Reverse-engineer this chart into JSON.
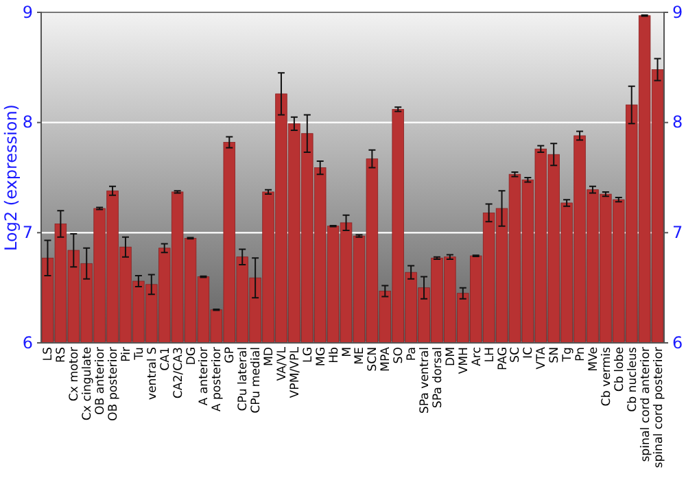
{
  "chart_data": {
    "type": "bar",
    "ylabel": "Log2 (expression)",
    "categories": [
      "LS",
      "RS",
      "Cx motor",
      "Cx cingulate",
      "OB anterior",
      "OB posterior",
      "Pir",
      "Tu",
      "ventral S",
      "CA1",
      "CA2/CA3",
      "DG",
      "A anterior",
      "A posterior",
      "GP",
      "CPu lateral",
      "CPu medial",
      "MD",
      "VA/VL",
      "VPM/VPL",
      "LG",
      "MG",
      "Hb",
      "M",
      "ME",
      "SCN",
      "MPA",
      "SO",
      "Pa",
      "SPa ventral",
      "SPa dorsal",
      "DM",
      "VMH",
      "Arc",
      "LH",
      "PAG",
      "SC",
      "IC",
      "VTA",
      "SN",
      "Tg",
      "Pn",
      "MVe",
      "Cb vermis",
      "Cb lobe",
      "Cb nucleus",
      "spinal cord anterior",
      "spinal cord posterior"
    ],
    "values": [
      6.77,
      7.08,
      6.84,
      6.72,
      7.22,
      7.38,
      6.87,
      6.56,
      6.53,
      6.86,
      7.37,
      6.95,
      6.6,
      6.3,
      7.82,
      6.78,
      6.59,
      7.37,
      8.26,
      7.99,
      7.9,
      7.59,
      7.06,
      7.09,
      6.97,
      7.67,
      6.47,
      8.12,
      6.64,
      6.5,
      6.77,
      6.78,
      6.45,
      6.79,
      7.18,
      7.22,
      7.53,
      7.48,
      7.76,
      7.71,
      7.27,
      7.88,
      7.39,
      7.35,
      7.3,
      8.16,
      8.97,
      8.48
    ],
    "errors": [
      0.16,
      0.12,
      0.15,
      0.14,
      0.01,
      0.04,
      0.09,
      0.05,
      0.09,
      0.04,
      0.01,
      0.005,
      0.005,
      0.005,
      0.05,
      0.07,
      0.18,
      0.02,
      0.19,
      0.06,
      0.17,
      0.06,
      0.005,
      0.07,
      0.01,
      0.08,
      0.05,
      0.02,
      0.06,
      0.1,
      0.01,
      0.02,
      0.05,
      0.005,
      0.08,
      0.16,
      0.02,
      0.02,
      0.03,
      0.1,
      0.03,
      0.04,
      0.03,
      0.02,
      0.02,
      0.17,
      0.005,
      0.1
    ],
    "color": "#b83232",
    "ylim": [
      6,
      9
    ],
    "yticks": [
      6,
      7,
      8,
      9
    ],
    "y2lim": [
      6,
      9
    ],
    "y2ticks": [
      6,
      7,
      8,
      9
    ],
    "grid": "y"
  }
}
